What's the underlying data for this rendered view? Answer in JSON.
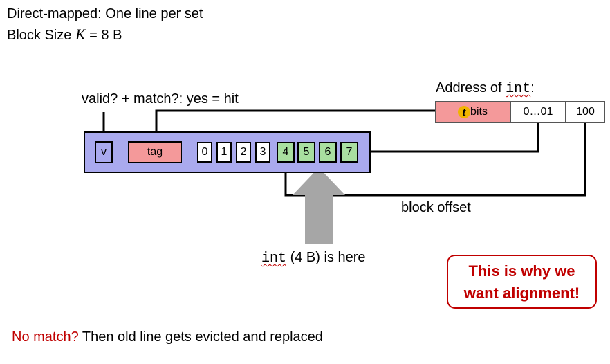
{
  "header": {
    "line1": "Direct-mapped:  One line per set",
    "block_size_prefix": "Block Size ",
    "block_size_var": "K",
    "block_size_suffix": " = 8 B"
  },
  "labels": {
    "valid_match": "valid?  +  match?: yes = hit",
    "address_prefix": "Address of ",
    "address_code": "int",
    "address_suffix": ":",
    "block_offset": "block offset",
    "int_code": "int",
    "int_rest": " (4 B) is here"
  },
  "address": {
    "tag_letter": "t",
    "tag_suffix": " bits",
    "middle": "0…01",
    "offset": "100"
  },
  "cache_line": {
    "valid": "v",
    "tag": "tag",
    "bytes": [
      "0",
      "1",
      "2",
      "3",
      "4",
      "5",
      "6",
      "7"
    ],
    "highlighted": [
      4,
      5,
      6,
      7
    ]
  },
  "callout": {
    "line1": "This is why we",
    "line2": "want alignment!"
  },
  "footer": {
    "red": "No match?",
    "rest": " Then old line gets evicted and replaced"
  },
  "colors": {
    "line_fill": "#aaaaee",
    "tag_fill": "#f4999a",
    "byte_highlight": "#a9dfa0",
    "arrow": "#a6a6a6",
    "accent_red": "#c00000",
    "t_badge": "#f0b400"
  }
}
